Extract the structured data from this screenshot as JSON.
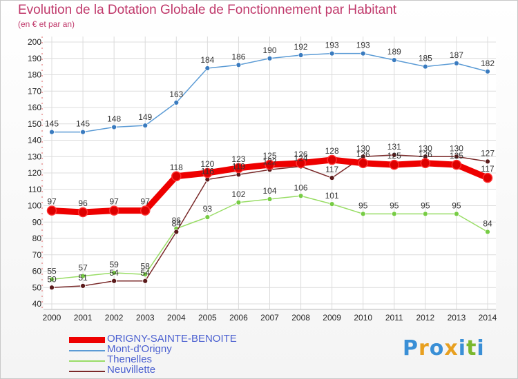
{
  "title": "Evolution de la Dotation Globale de Fonctionnement par Habitant",
  "subtitle": "(en € et par an)",
  "logo": {
    "text": "Proxiti",
    "letters": [
      "P",
      "r",
      "o",
      "x",
      "i",
      "t",
      "i"
    ],
    "colors": [
      "#3a8fd6",
      "#e8a020",
      "#3a8fd6",
      "#e8a020",
      "#3a8fd6",
      "#7ab82e",
      "#3a8fd6"
    ]
  },
  "chart_data": {
    "type": "line",
    "x": [
      2000,
      2001,
      2002,
      2003,
      2004,
      2005,
      2006,
      2007,
      2008,
      2009,
      2010,
      2011,
      2012,
      2013,
      2014
    ],
    "ylim": [
      40,
      200
    ],
    "yticks": [
      40,
      50,
      60,
      70,
      80,
      90,
      100,
      110,
      120,
      130,
      140,
      150,
      160,
      170,
      180,
      190,
      200
    ],
    "grid": true,
    "legend_position": "bottom-left",
    "series": [
      {
        "name": "Mont-d'Origny",
        "color": "#5b9bd5",
        "point_color": "#3a7bbf",
        "values": [
          145,
          145,
          148,
          149,
          163,
          184,
          186,
          190,
          192,
          193,
          193,
          189,
          185,
          187,
          182
        ]
      },
      {
        "name": "Thenelles",
        "color": "#99dd66",
        "point_color": "#77cc44",
        "values": [
          55,
          57,
          59,
          58,
          86,
          93,
          102,
          104,
          106,
          101,
          95,
          95,
          95,
          95,
          84
        ]
      },
      {
        "name": "Neuvillette",
        "color": "#7a2a2a",
        "point_color": "#5a1a1a",
        "values": [
          50,
          51,
          54,
          54,
          84,
          116,
          119,
          122,
          124,
          117,
          130,
          131,
          130,
          130,
          127
        ]
      },
      {
        "name": "ORIGNY-SAINTE-BENOITE",
        "color": "#ee0000",
        "point_color": "#dd0000",
        "values": [
          97,
          96,
          97,
          97,
          118,
          120,
          123,
          125,
          126,
          128,
          126,
          125,
          126,
          125,
          117
        ]
      }
    ]
  },
  "legend": [
    {
      "name": "ORIGNY-SAINTE-BENOITE",
      "color": "#ee0000"
    },
    {
      "name": "Mont-d'Origny",
      "color": "#5b9bd5"
    },
    {
      "name": "Thenelles",
      "color": "#99dd66"
    },
    {
      "name": "Neuvillette",
      "color": "#7a2a2a"
    }
  ]
}
